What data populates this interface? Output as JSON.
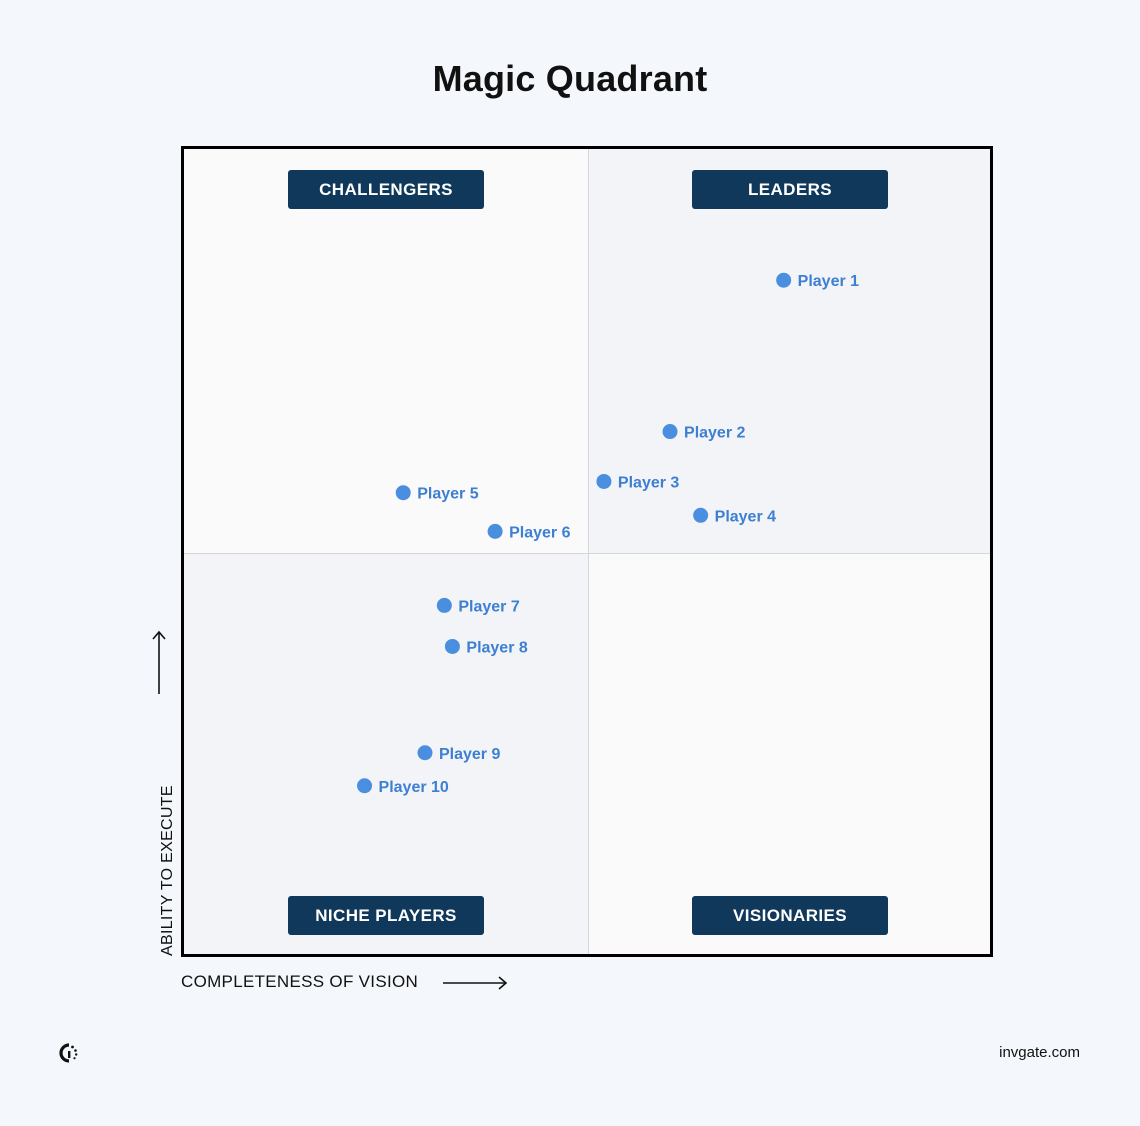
{
  "chart_data": {
    "type": "scatter",
    "title": "Magic Quadrant",
    "xlabel": "COMPLETENESS OF VISION",
    "ylabel": "ABILITY TO EXECUTE",
    "xlim": [
      0,
      100
    ],
    "ylim": [
      0,
      100
    ],
    "grid": false,
    "quadrants": {
      "top_left": "CHALLENGERS",
      "top_right": "LEADERS",
      "bottom_left": "NICHE PLAYERS",
      "bottom_right": "VISIONARIES"
    },
    "points": [
      {
        "label": "Player 1",
        "x": 74.4,
        "y": 83.7
      },
      {
        "label": "Player 2",
        "x": 60.3,
        "y": 64.9
      },
      {
        "label": "Player 3",
        "x": 52.1,
        "y": 58.7
      },
      {
        "label": "Player 4",
        "x": 64.1,
        "y": 54.5
      },
      {
        "label": "Player 5",
        "x": 27.2,
        "y": 57.3
      },
      {
        "label": "Player 6",
        "x": 38.6,
        "y": 52.5
      },
      {
        "label": "Player 7",
        "x": 32.3,
        "y": 43.3
      },
      {
        "label": "Player 8",
        "x": 33.3,
        "y": 38.2
      },
      {
        "label": "Player 9",
        "x": 29.9,
        "y": 25.0
      },
      {
        "label": "Player 10",
        "x": 22.4,
        "y": 20.9
      }
    ]
  },
  "colors": {
    "point": "#4a8ee0",
    "point_label": "#3d7fd2",
    "quadrant_label_bg": "#0f385a"
  },
  "footer": {
    "logo_icon": "invgate-logo-icon",
    "domain": "invgate.com"
  }
}
